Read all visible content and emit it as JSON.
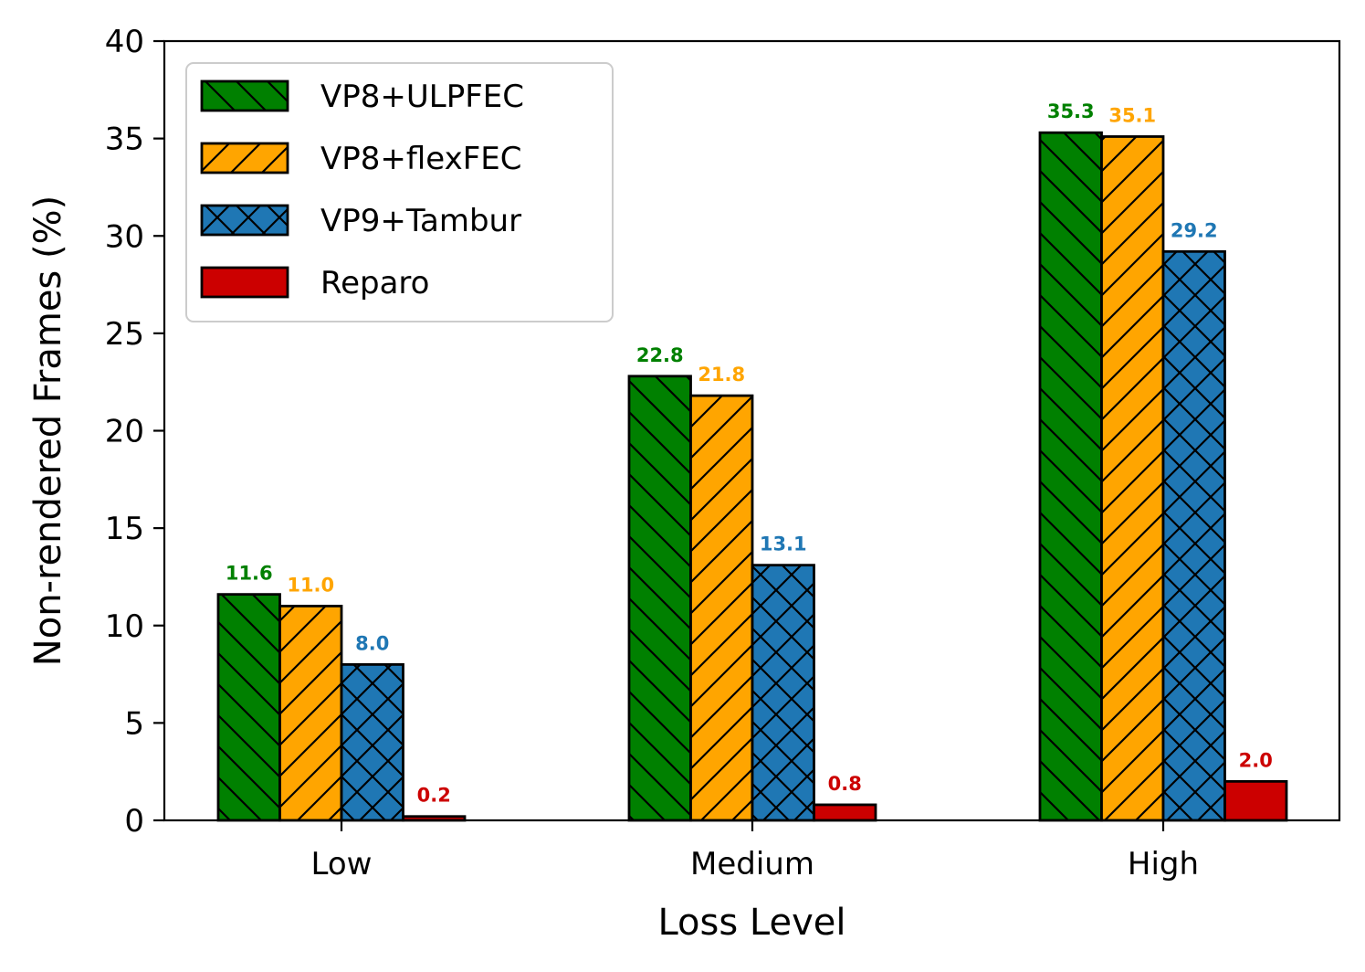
{
  "chart_data": {
    "type": "bar",
    "title": "",
    "xlabel": "Loss Level",
    "ylabel": "Non-rendered Frames (%)",
    "ylim": [
      0,
      40
    ],
    "yticks": [
      0,
      5,
      10,
      15,
      20,
      25,
      30,
      35,
      40
    ],
    "categories": [
      "Low",
      "Medium",
      "High"
    ],
    "legend_position": "top-left",
    "series": [
      {
        "name": "VP8+ULPFEC",
        "values": [
          11.6,
          22.8,
          35.3
        ],
        "color": "#008000",
        "hatch": "backslash",
        "labels": [
          "11.6",
          "22.8",
          "35.3"
        ]
      },
      {
        "name": "VP8+flexFEC",
        "values": [
          11.0,
          21.8,
          35.1
        ],
        "color": "#FFA500",
        "hatch": "slash",
        "labels": [
          "11.0",
          "21.8",
          "35.1"
        ]
      },
      {
        "name": "VP9+Tambur",
        "values": [
          8.0,
          13.1,
          29.2
        ],
        "color": "#1F77B4",
        "hatch": "cross",
        "labels": [
          "8.0",
          "13.1",
          "29.2"
        ]
      },
      {
        "name": "Reparo",
        "values": [
          0.2,
          0.8,
          2.0
        ],
        "color": "#CC0000",
        "hatch": "none",
        "labels": [
          "0.2",
          "0.8",
          "2.0"
        ]
      }
    ]
  }
}
